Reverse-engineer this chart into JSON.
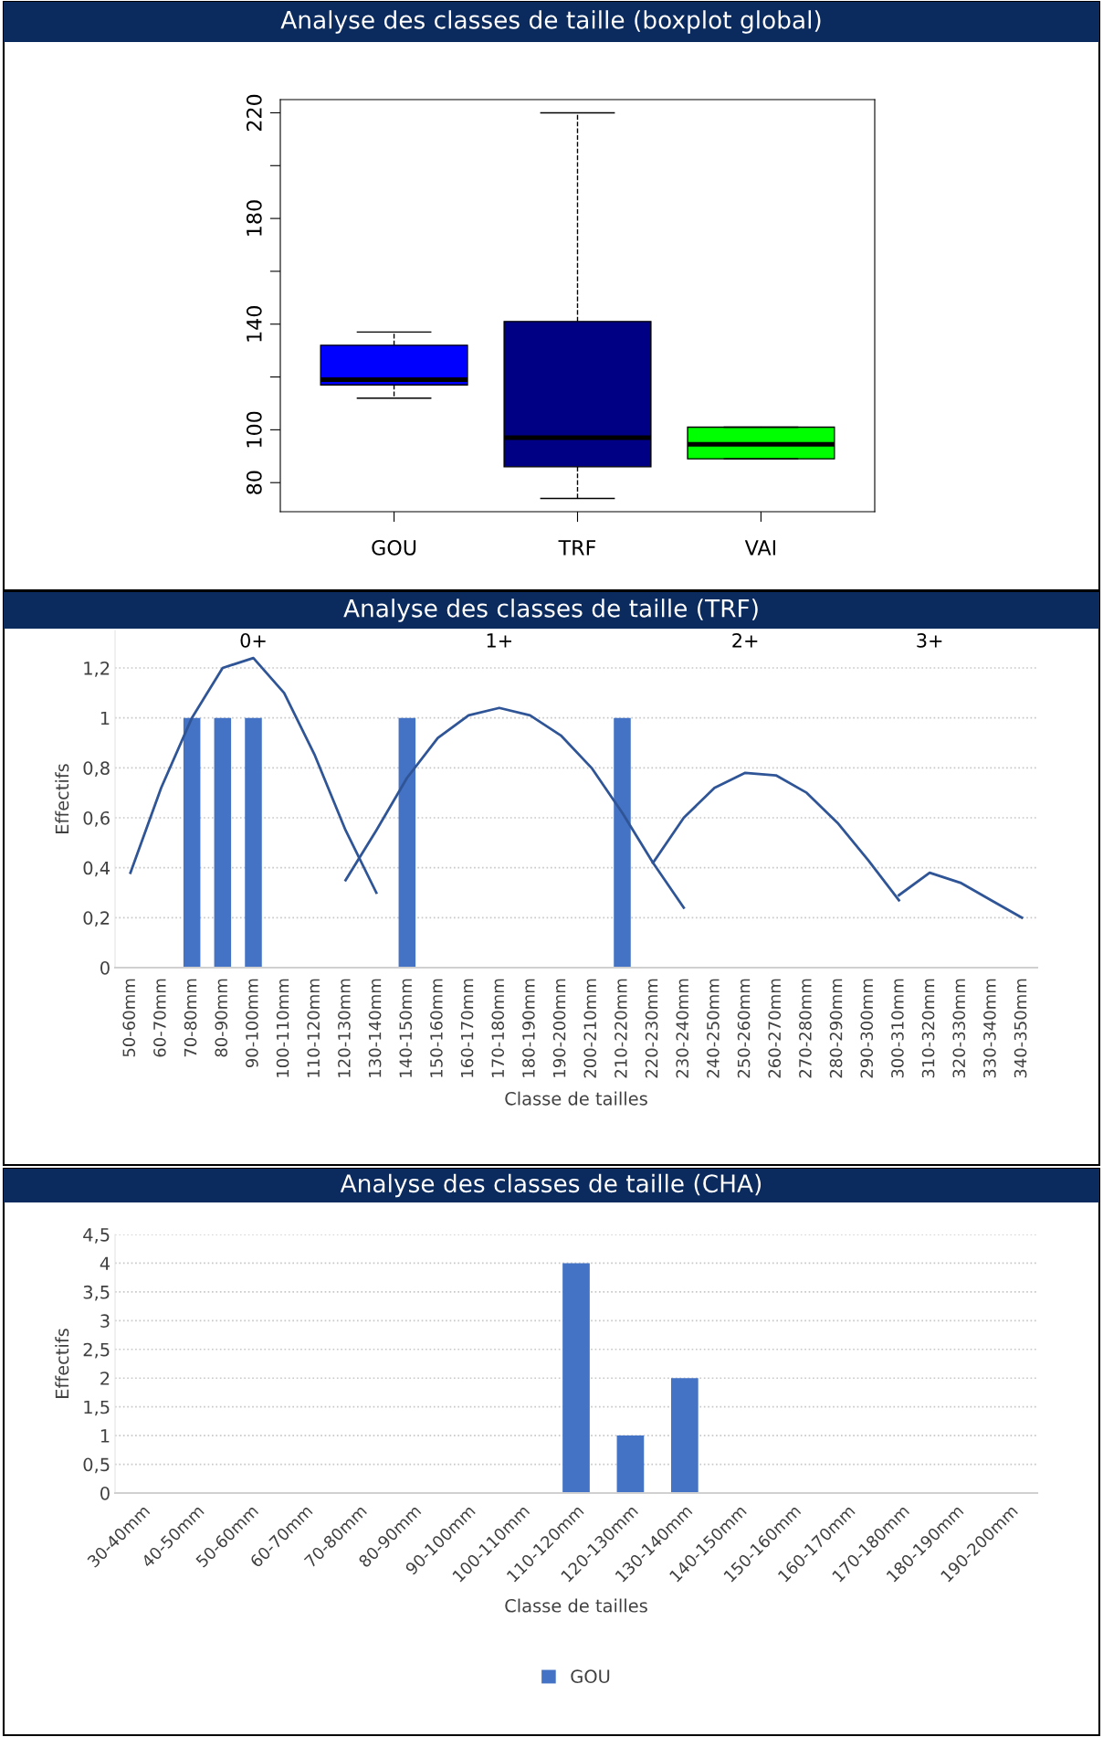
{
  "chart_data": [
    {
      "type": "box",
      "title": "Analyse des classes de taille (boxplot global)",
      "categories": [
        "GOU",
        "TRF",
        "VAI"
      ],
      "boxes": [
        {
          "low": 112,
          "q1": 117,
          "median": 119,
          "q3": 132,
          "high": 137
        },
        {
          "low": 74,
          "q1": 86,
          "median": 97,
          "q3": 141,
          "high": 220
        },
        {
          "low": 89,
          "q1": 89,
          "median": 94.5,
          "q3": 101,
          "high": 101
        }
      ],
      "colors": [
        "#0000ff",
        "#000085",
        "#00ff00"
      ],
      "ylim": [
        69,
        225
      ],
      "yticks": [
        80,
        100,
        {
          "value": 120,
          "label": null
        },
        140,
        {
          "value": 160,
          "label": null
        },
        180,
        {
          "value": 200,
          "label": null
        },
        220
      ],
      "grid": false
    },
    {
      "type": "bar",
      "title": "Analyse des classes de taille (TRF)",
      "xlabel": "Classe de tailles",
      "ylabel": "Effectifs",
      "categories": [
        "50-60mm",
        "60-70mm",
        "70-80mm",
        "80-90mm",
        "90-100mm",
        "100-110mm",
        "110-120mm",
        "120-130mm",
        "130-140mm",
        "140-150mm",
        "150-160mm",
        "160-170mm",
        "170-180mm",
        "180-190mm",
        "190-200mm",
        "200-210mm",
        "210-220mm",
        "220-230mm",
        "230-240mm",
        "240-250mm",
        "250-260mm",
        "260-270mm",
        "270-280mm",
        "280-290mm",
        "290-300mm",
        "300-310mm",
        "310-320mm",
        "320-330mm",
        "330-340mm",
        "340-350mm"
      ],
      "series": [
        {
          "type": "bar",
          "color": "#4472c4",
          "values": [
            0,
            0,
            1,
            1,
            1,
            0,
            0,
            0,
            0,
            1,
            0,
            0,
            0,
            0,
            0,
            0,
            1,
            0,
            0,
            0,
            0,
            0,
            0,
            0,
            0,
            0,
            0,
            0,
            0,
            0
          ]
        },
        {
          "type": "line",
          "color": "#2f5597",
          "values": [
            0.38,
            0.72,
            1.0,
            1.2,
            1.24,
            1.1,
            0.85,
            0.55,
            0.3,
            null,
            null,
            null,
            null,
            null,
            null,
            null,
            null,
            null,
            null,
            null,
            null,
            null,
            null,
            null,
            null,
            null,
            null,
            null,
            null,
            null
          ]
        },
        {
          "type": "line",
          "color": "#2f5597",
          "values": [
            null,
            null,
            null,
            null,
            null,
            null,
            null,
            0.35,
            0.55,
            0.76,
            0.92,
            1.01,
            1.04,
            1.01,
            0.93,
            0.8,
            0.62,
            0.42,
            0.24,
            null,
            null,
            null,
            null,
            null,
            null,
            null,
            null,
            null,
            null,
            null
          ]
        },
        {
          "type": "line",
          "color": "#2f5597",
          "values": [
            null,
            null,
            null,
            null,
            null,
            null,
            null,
            null,
            null,
            null,
            null,
            null,
            null,
            null,
            null,
            null,
            null,
            0.42,
            0.6,
            0.72,
            0.78,
            0.77,
            0.7,
            0.58,
            0.43,
            0.27,
            null,
            null,
            null,
            null
          ]
        },
        {
          "type": "line",
          "color": "#2f5597",
          "values": [
            null,
            null,
            null,
            null,
            null,
            null,
            null,
            null,
            null,
            null,
            null,
            null,
            null,
            null,
            null,
            null,
            null,
            null,
            null,
            null,
            null,
            null,
            null,
            null,
            null,
            0.29,
            0.38,
            0.34,
            0.27,
            0.2
          ]
        }
      ],
      "annotations": [
        "0+",
        "1+",
        "2+",
        "3+"
      ],
      "ylim": [
        0,
        1.35
      ],
      "yticks": [
        0,
        {
          "value": 0.2,
          "label": "0,2"
        },
        {
          "value": 0.4,
          "label": "0,4"
        },
        {
          "value": 0.6,
          "label": "0,6"
        },
        {
          "value": 0.8,
          "label": "0,8"
        },
        1,
        {
          "value": 1.2,
          "label": "1,2"
        }
      ],
      "grid": "y",
      "marker": "none"
    },
    {
      "type": "bar",
      "title": "Analyse des classes de taille (CHA)",
      "xlabel": "Classe de tailles",
      "ylabel": "Effectifs",
      "categories": [
        "30-40mm",
        "40-50mm",
        "50-60mm",
        "60-70mm",
        "70-80mm",
        "80-90mm",
        "90-100mm",
        "100-110mm",
        "110-120mm",
        "120-130mm",
        "130-140mm",
        "140-150mm",
        "150-160mm",
        "160-170mm",
        "170-180mm",
        "180-190mm",
        "190-200mm"
      ],
      "series": [
        {
          "name": "GOU",
          "color": "#4472c4",
          "values": [
            0,
            0,
            0,
            0,
            0,
            0,
            0,
            0,
            4,
            1,
            2,
            0,
            0,
            0,
            0,
            0,
            0
          ]
        }
      ],
      "ylim": [
        0,
        4.5
      ],
      "yticks": [
        0,
        {
          "value": 0.5,
          "label": "0,5"
        },
        1,
        {
          "value": 1.5,
          "label": "1,5"
        },
        2,
        {
          "value": 2.5,
          "label": "2,5"
        },
        3,
        {
          "value": 3.5,
          "label": "3,5"
        },
        4,
        {
          "value": 4.5,
          "label": "4,5"
        }
      ],
      "grid": "y",
      "legend": "bottom"
    }
  ]
}
